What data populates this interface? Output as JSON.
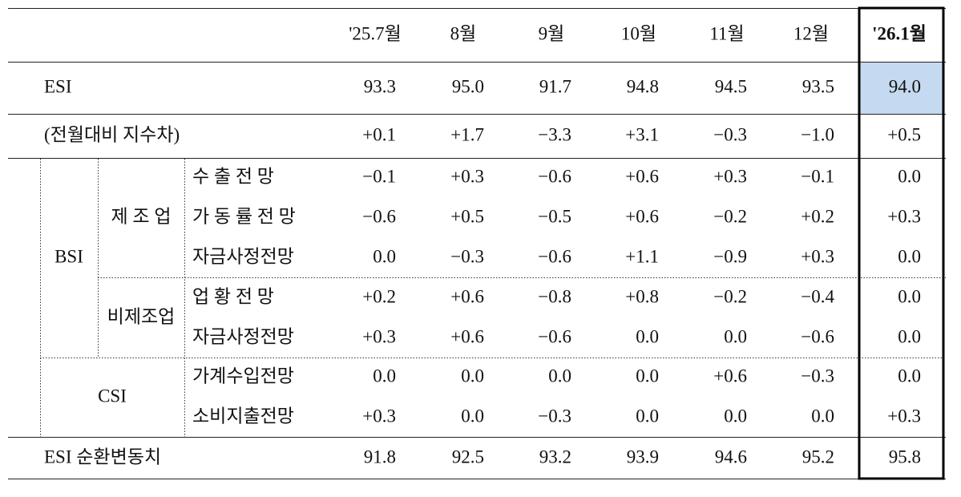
{
  "table": {
    "columns": [
      "'25.7월",
      "8월",
      "9월",
      "10월",
      "11월",
      "12월",
      "'26.1월"
    ],
    "groups": {
      "bsi": "BSI",
      "manufacturing": "제 조 업",
      "non_manufacturing": "비제조업",
      "csi": "CSI"
    },
    "rows": [
      {
        "label": "ESI",
        "values": [
          "93.3",
          "95.0",
          "91.7",
          "94.8",
          "94.5",
          "93.5",
          "94.0"
        ]
      },
      {
        "label": "(전월대비 지수차)",
        "values": [
          "+0.1",
          "+1.7",
          "−3.3",
          "+3.1",
          "−0.3",
          "−1.0",
          "+0.5"
        ]
      },
      {
        "label": "수 출 전 망",
        "values": [
          "−0.1",
          "+0.3",
          "−0.6",
          "+0.6",
          "+0.3",
          "−0.1",
          "0.0"
        ]
      },
      {
        "label": "가 동 률 전 망",
        "values": [
          "−0.6",
          "+0.5",
          "−0.5",
          "+0.6",
          "−0.2",
          "+0.2",
          "+0.3"
        ]
      },
      {
        "label": "자금사정전망",
        "values": [
          "0.0",
          "−0.3",
          "−0.6",
          "+1.1",
          "−0.9",
          "+0.3",
          "0.0"
        ]
      },
      {
        "label": "업 황 전 망",
        "values": [
          "+0.2",
          "+0.6",
          "−0.8",
          "+0.8",
          "−0.2",
          "−0.4",
          "0.0"
        ]
      },
      {
        "label": "자금사정전망",
        "values": [
          "+0.3",
          "+0.6",
          "−0.6",
          "0.0",
          "0.0",
          "−0.6",
          "0.0"
        ]
      },
      {
        "label": "가계수입전망",
        "values": [
          "0.0",
          "0.0",
          "0.0",
          "0.0",
          "+0.6",
          "−0.3",
          "0.0"
        ]
      },
      {
        "label": "소비지출전망",
        "values": [
          "+0.3",
          "0.0",
          "−0.3",
          "0.0",
          "0.0",
          "0.0",
          "+0.3"
        ]
      },
      {
        "label": "ESI 순환변동치",
        "values": [
          "91.8",
          "92.5",
          "93.2",
          "93.9",
          "94.6",
          "95.2",
          "95.8"
        ]
      }
    ]
  }
}
